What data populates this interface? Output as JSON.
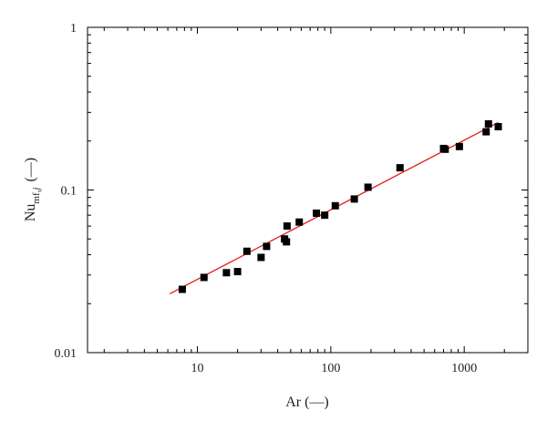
{
  "chart_data": {
    "type": "scatter",
    "title": "",
    "xlabel": "Ar (—)",
    "ylabel": {
      "main": "Nu",
      "subscript": "mf,",
      "subscript_italic": "j",
      "unit": "(—)"
    },
    "xscale": "log",
    "yscale": "log",
    "xlim": [
      1.5,
      3000
    ],
    "ylim": [
      0.01,
      1
    ],
    "xticks": [
      {
        "value": 10,
        "label": "10"
      },
      {
        "value": 100,
        "label": "100"
      },
      {
        "value": 1000,
        "label": "1000"
      }
    ],
    "yticks": [
      {
        "value": 0.01,
        "label": "0.01"
      },
      {
        "value": 0.1,
        "label": "0.1"
      },
      {
        "value": 1,
        "label": "1"
      }
    ],
    "grid": false,
    "legend": "none",
    "series": [
      {
        "kind": "points",
        "marker": "square",
        "color": "#000000",
        "points": [
          {
            "x": 7.7,
            "y": 0.0245
          },
          {
            "x": 11.2,
            "y": 0.029
          },
          {
            "x": 16.5,
            "y": 0.031
          },
          {
            "x": 20,
            "y": 0.0315
          },
          {
            "x": 23.5,
            "y": 0.042
          },
          {
            "x": 30,
            "y": 0.0385
          },
          {
            "x": 33,
            "y": 0.045
          },
          {
            "x": 45,
            "y": 0.05
          },
          {
            "x": 46.5,
            "y": 0.048
          },
          {
            "x": 47,
            "y": 0.06
          },
          {
            "x": 58,
            "y": 0.0635
          },
          {
            "x": 78,
            "y": 0.072
          },
          {
            "x": 90,
            "y": 0.07
          },
          {
            "x": 108,
            "y": 0.08
          },
          {
            "x": 150,
            "y": 0.088
          },
          {
            "x": 190,
            "y": 0.104
          },
          {
            "x": 330,
            "y": 0.137
          },
          {
            "x": 700,
            "y": 0.18
          },
          {
            "x": 720,
            "y": 0.178
          },
          {
            "x": 920,
            "y": 0.185
          },
          {
            "x": 1460,
            "y": 0.228
          },
          {
            "x": 1520,
            "y": 0.255
          },
          {
            "x": 1800,
            "y": 0.245
          }
        ]
      },
      {
        "kind": "fit-line",
        "color": "#e0201b",
        "x": [
          6.2,
          1800
        ],
        "y": [
          0.023,
          0.26
        ]
      }
    ]
  }
}
